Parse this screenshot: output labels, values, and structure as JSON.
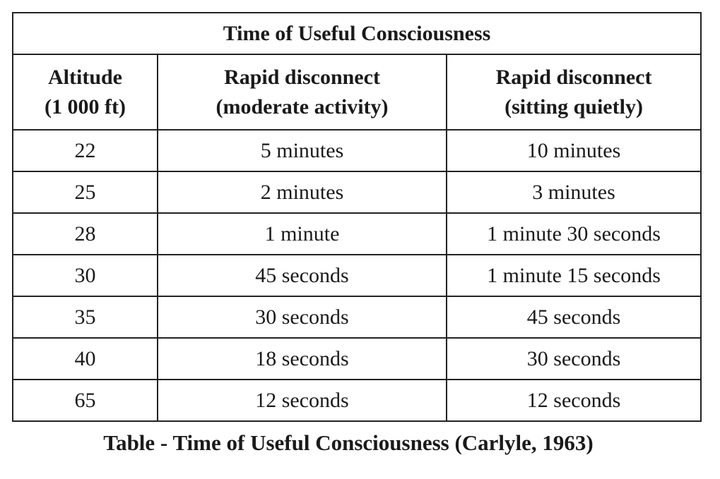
{
  "table": {
    "title": "Time of Useful Consciousness",
    "header": [
      [
        "Altitude",
        "(1 000 ft)"
      ],
      [
        "Rapid disconnect",
        "(moderate activity)"
      ],
      [
        "Rapid disconnect",
        "(sitting quietly)"
      ]
    ],
    "rows": [
      [
        "22",
        "5 minutes",
        "10 minutes"
      ],
      [
        "25",
        "2 minutes",
        "3 minutes"
      ],
      [
        "28",
        "1 minute",
        "1 minute 30 seconds"
      ],
      [
        "30",
        "45 seconds",
        "1 minute 15 seconds"
      ],
      [
        "35",
        "30 seconds",
        "45 seconds"
      ],
      [
        "40",
        "18 seconds",
        "30 seconds"
      ],
      [
        "65",
        "12 seconds",
        "12 seconds"
      ]
    ]
  },
  "caption": "Table - Time of Useful Consciousness (Carlyle, 1963)"
}
